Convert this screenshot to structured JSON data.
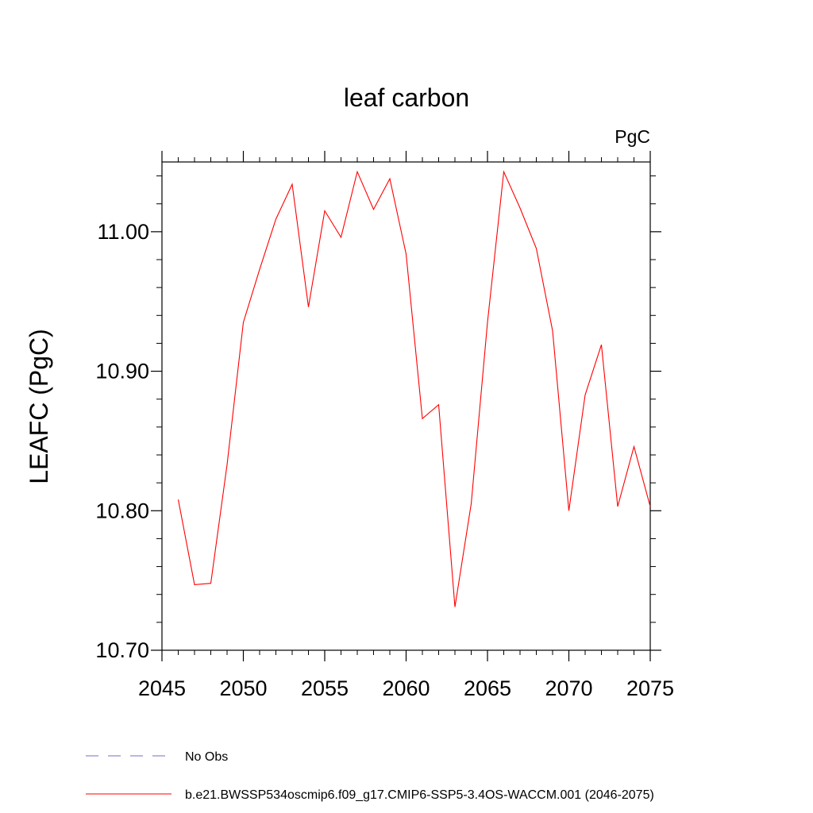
{
  "chart_data": {
    "type": "line",
    "title": "leaf carbon",
    "units": "PgC",
    "ylabel": "LEAFC  (PgC)",
    "xlabel": "",
    "xlim": [
      2045,
      2075
    ],
    "ylim": [
      10.7,
      11.05
    ],
    "xticks": [
      {
        "value": 2045,
        "label": "2045"
      },
      {
        "value": 2050,
        "label": "2050"
      },
      {
        "value": 2055,
        "label": "2055"
      },
      {
        "value": 2060,
        "label": "2060"
      },
      {
        "value": 2065,
        "label": "2065"
      },
      {
        "value": 2070,
        "label": "2070"
      },
      {
        "value": 2075,
        "label": "2075"
      }
    ],
    "yticks": [
      {
        "value": 10.7,
        "label": "10.70"
      },
      {
        "value": 10.8,
        "label": "10.80"
      },
      {
        "value": 10.9,
        "label": "10.90"
      },
      {
        "value": 11.0,
        "label": "11.00"
      }
    ],
    "series": [
      {
        "name": "b.e21.BWSSP534oscmip6.f09_g17.CMIP6-SSP5-3.4OS-WACCM.001 (2046-2075)",
        "color": "#ff0000",
        "x": [
          2046,
          2047,
          2048,
          2049,
          2050,
          2051,
          2052,
          2053,
          2054,
          2055,
          2056,
          2057,
          2058,
          2059,
          2060,
          2061,
          2062,
          2063,
          2064,
          2065,
          2066,
          2067,
          2068,
          2069,
          2070,
          2071,
          2072,
          2073,
          2074,
          2075
        ],
        "y": [
          10.808,
          10.747,
          10.748,
          10.833,
          10.935,
          10.973,
          11.009,
          11.034,
          10.946,
          11.015,
          10.996,
          11.043,
          11.016,
          11.038,
          10.984,
          10.866,
          10.876,
          10.731,
          10.805,
          10.935,
          11.043,
          11.017,
          10.988,
          10.929,
          10.8,
          10.883,
          10.919,
          10.803,
          10.846,
          10.803
        ]
      }
    ],
    "legend": {
      "placement": "bottom-left",
      "entries": [
        {
          "label": "No Obs",
          "color": "#6f6fc8",
          "dash": true
        },
        {
          "label": "b.e21.BWSSP534oscmip6.f09_g17.CMIP6-SSP5-3.4OS-WACCM.001 (2046-2075)",
          "color": "#ff0000",
          "dash": false
        }
      ]
    },
    "grid": false
  }
}
